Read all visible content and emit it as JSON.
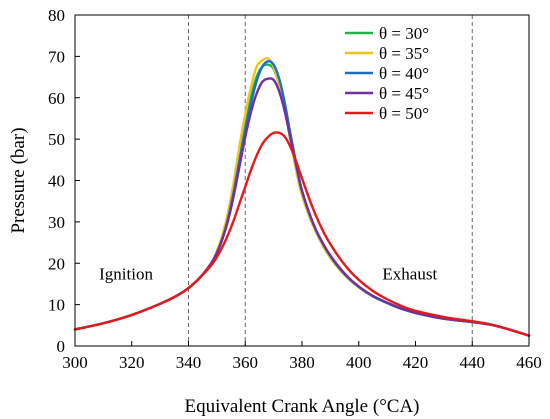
{
  "chart_data": {
    "type": "line",
    "title": "",
    "xlabel": "Equivalent Crank Angle  (°CA)",
    "ylabel": "Pressure  (bar)",
    "xlim": [
      300,
      460
    ],
    "ylim": [
      0,
      80
    ],
    "xticks": [
      "300",
      "320",
      "340",
      "360",
      "380",
      "400",
      "420",
      "440",
      "460"
    ],
    "yticks": [
      "0",
      "10",
      "20",
      "30",
      "40",
      "50",
      "60",
      "70",
      "80"
    ],
    "grid": false,
    "legend_position": "top-right",
    "reference_lines_x": [
      340,
      360,
      440
    ],
    "annotations": [
      {
        "text": "Ignition",
        "x": 318,
        "y": 17.5
      },
      {
        "text": "Exhaust",
        "x": 418,
        "y": 17.5
      }
    ],
    "x": [
      300,
      310,
      320,
      330,
      336,
      340,
      344,
      348,
      350,
      352,
      354,
      356,
      358,
      360,
      362,
      364,
      366,
      368,
      370,
      372,
      374,
      376,
      378,
      380,
      384,
      388,
      392,
      396,
      400,
      405,
      410,
      415,
      420,
      430,
      440,
      446,
      452,
      460
    ],
    "series": [
      {
        "name": "θ = 30°",
        "color": "#22b14c",
        "values": [
          4.0,
          5.5,
          7.5,
          10.2,
          12.2,
          14.0,
          16.5,
          20.0,
          22.5,
          26.0,
          31.0,
          38.0,
          46.0,
          53.0,
          60.0,
          65.0,
          67.5,
          68.0,
          67.0,
          63.0,
          57.0,
          49.5,
          42.5,
          36.5,
          29.0,
          23.5,
          19.5,
          16.5,
          14.2,
          12.0,
          10.4,
          9.0,
          8.0,
          6.6,
          5.8,
          5.2,
          4.2,
          2.5
        ]
      },
      {
        "name": "θ = 35°",
        "color": "#f2c318",
        "values": [
          4.0,
          5.5,
          7.5,
          10.2,
          12.2,
          14.0,
          16.5,
          20.0,
          23.0,
          27.0,
          32.5,
          40.0,
          48.5,
          56.0,
          62.5,
          67.5,
          69.0,
          69.5,
          67.5,
          63.0,
          57.0,
          49.5,
          42.5,
          36.5,
          29.0,
          23.5,
          19.5,
          16.5,
          14.2,
          12.0,
          10.4,
          9.0,
          8.0,
          6.6,
          5.8,
          5.2,
          4.2,
          2.5
        ]
      },
      {
        "name": "θ = 40°",
        "color": "#1f6fc0",
        "values": [
          4.0,
          5.5,
          7.5,
          10.2,
          12.2,
          14.0,
          16.5,
          20.0,
          22.5,
          26.0,
          31.0,
          37.5,
          45.0,
          52.0,
          58.5,
          64.0,
          67.5,
          68.8,
          68.0,
          64.5,
          58.5,
          51.0,
          44.0,
          37.5,
          29.5,
          24.0,
          19.8,
          16.7,
          14.3,
          12.0,
          10.4,
          9.0,
          8.0,
          6.6,
          5.8,
          5.2,
          4.2,
          2.5
        ]
      },
      {
        "name": "θ = 45°",
        "color": "#7030a0",
        "values": [
          4.0,
          5.5,
          7.5,
          10.2,
          12.2,
          14.0,
          16.5,
          20.0,
          22.5,
          26.0,
          30.5,
          36.5,
          43.5,
          50.5,
          56.5,
          61.0,
          63.8,
          64.6,
          64.3,
          61.5,
          56.5,
          50.0,
          43.5,
          37.5,
          29.5,
          24.0,
          20.0,
          16.8,
          14.4,
          12.1,
          10.5,
          9.1,
          8.0,
          6.6,
          5.8,
          5.2,
          4.2,
          2.5
        ]
      },
      {
        "name": "θ = 50°",
        "color": "#e31a1c",
        "values": [
          4.0,
          5.5,
          7.5,
          10.2,
          12.2,
          14.0,
          16.5,
          19.5,
          21.5,
          24.0,
          27.0,
          30.5,
          34.5,
          38.5,
          42.5,
          46.0,
          48.8,
          50.5,
          51.5,
          51.5,
          50.5,
          48.0,
          44.5,
          40.5,
          33.0,
          27.0,
          22.5,
          18.8,
          16.0,
          13.3,
          11.3,
          9.7,
          8.5,
          7.0,
          6.0,
          5.3,
          4.2,
          2.5
        ]
      }
    ]
  }
}
